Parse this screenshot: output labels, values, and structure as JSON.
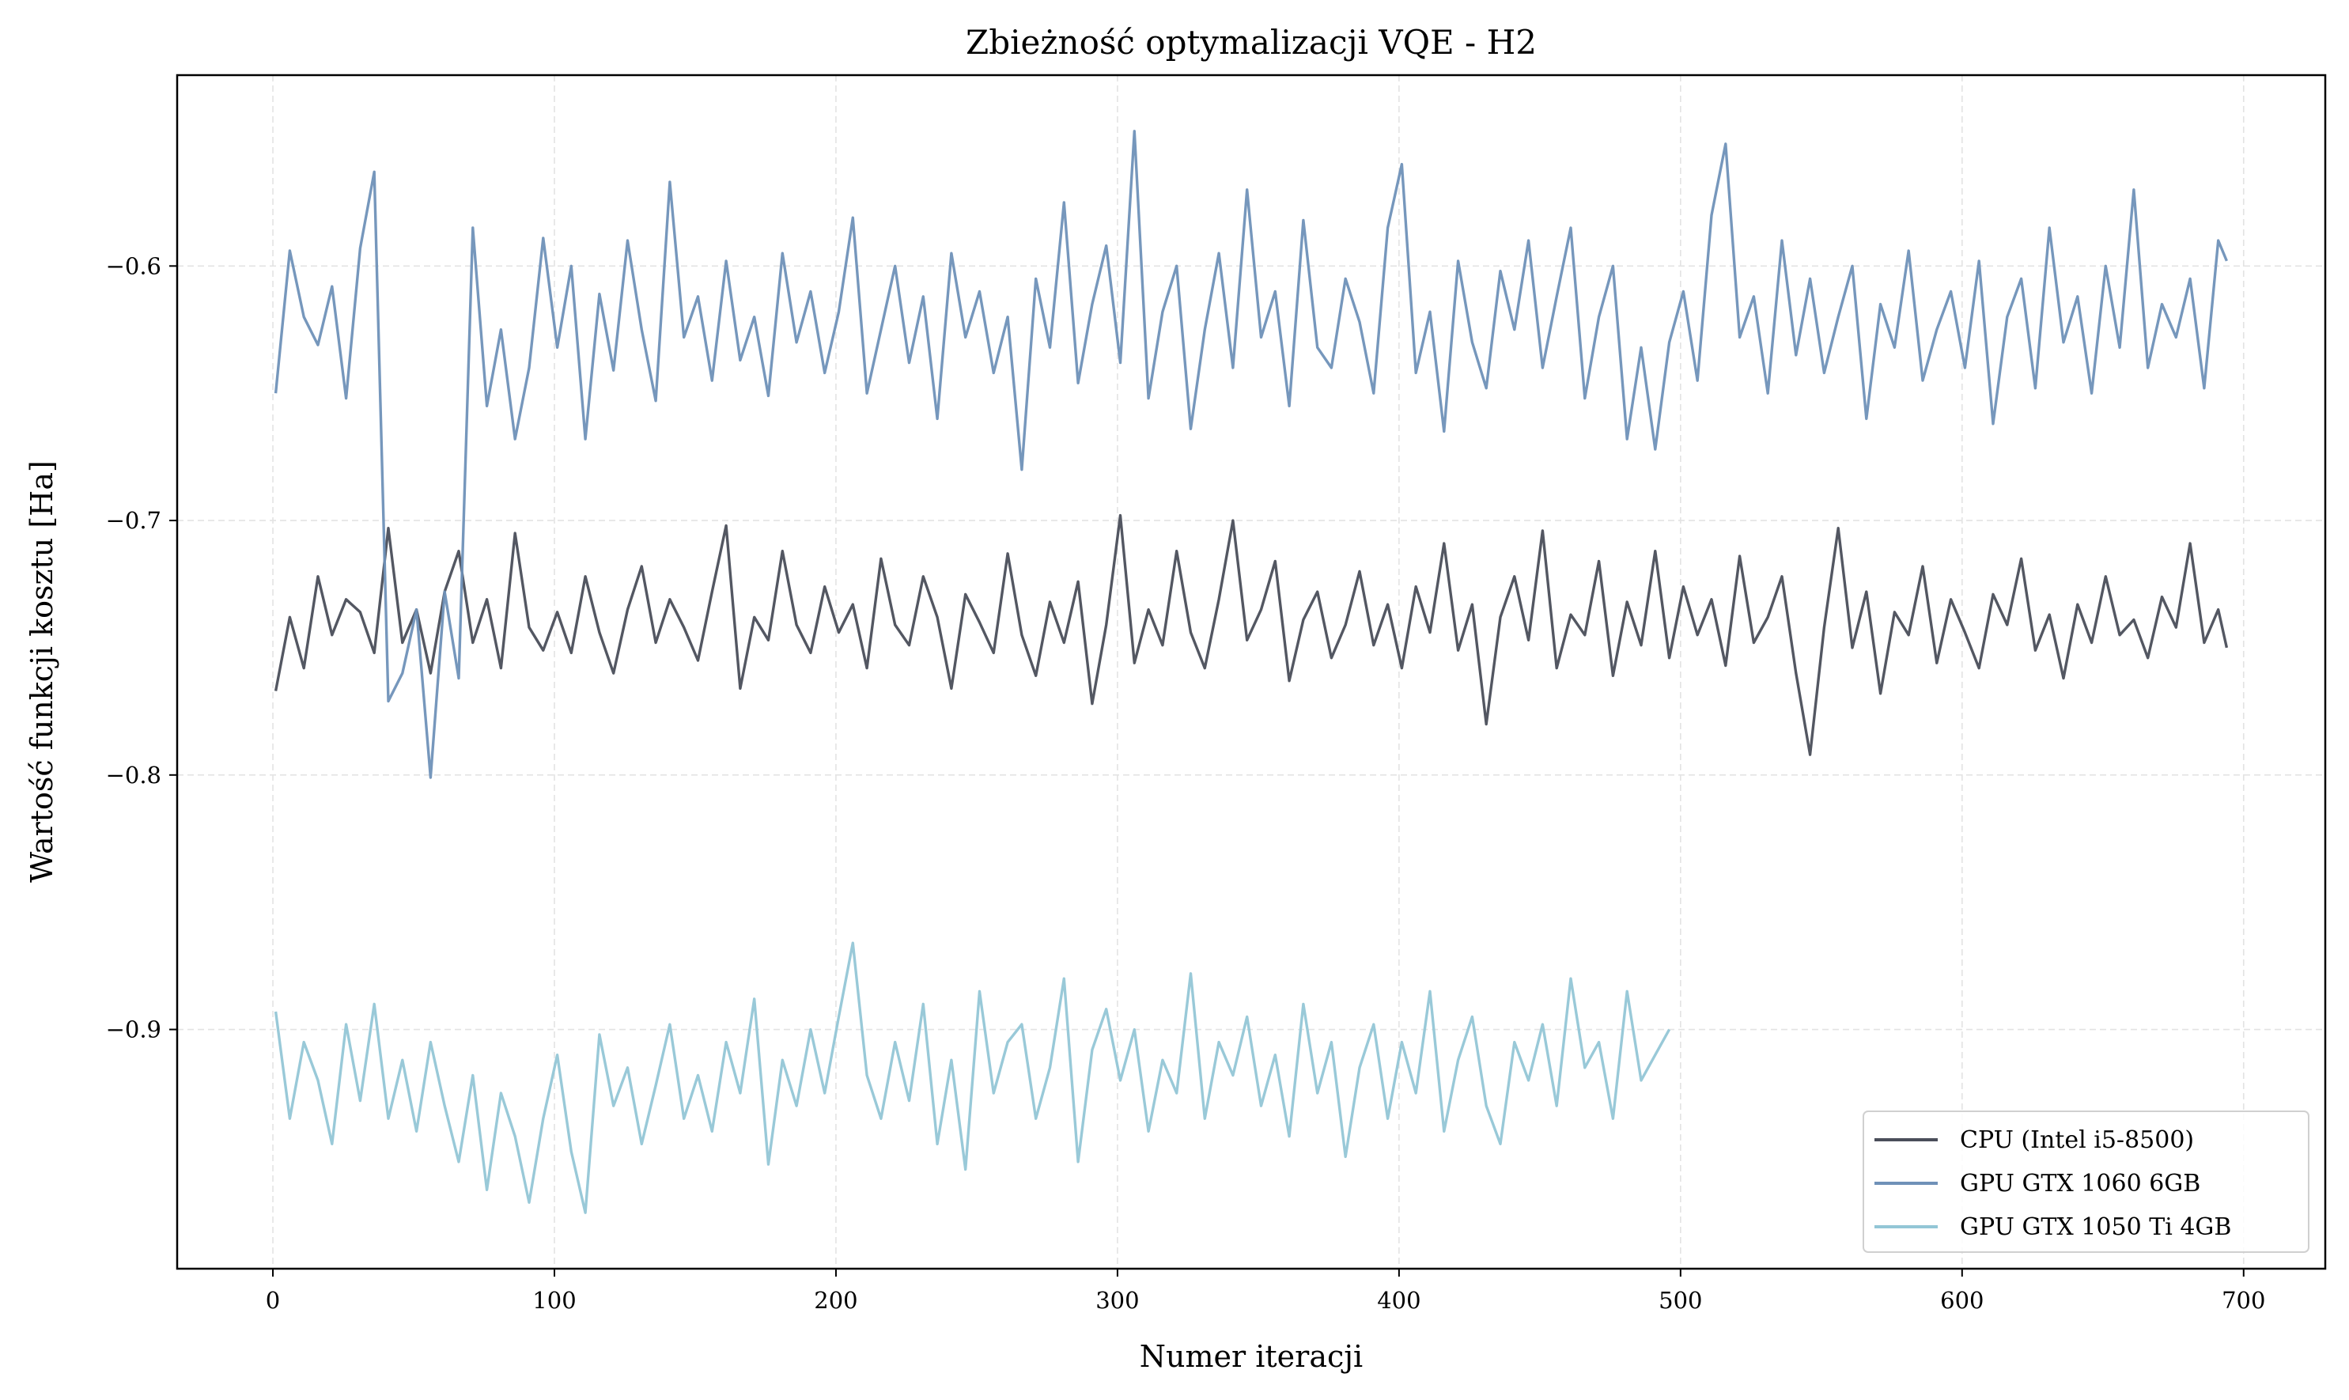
{
  "chart_data": {
    "type": "line",
    "title": "Zbieżność optymalizacji VQE - H2",
    "xlabel": "Numer iteracji",
    "ylabel": "Wartość funkcji kosztu [Ha]",
    "xlim": [
      -34,
      729
    ],
    "ylim": [
      -0.994,
      -0.525
    ],
    "xticks": [
      0,
      100,
      200,
      300,
      400,
      500,
      600,
      700
    ],
    "xtick_labels": [
      "0",
      "100",
      "200",
      "300",
      "400",
      "500",
      "600",
      "700"
    ],
    "yticks": [
      -0.6,
      -0.7,
      -0.8,
      -0.9
    ],
    "ytick_labels": [
      "−0.6",
      "−0.7",
      "−0.8",
      "−0.9"
    ],
    "grid": true,
    "legend_position": "bottom-right",
    "series": [
      {
        "name": "CPU (Intel i5-8500)",
        "color": "#4a4e5a",
        "x": [
          1,
          6,
          11,
          16,
          21,
          26,
          31,
          36,
          41,
          46,
          51,
          56,
          61,
          66,
          71,
          76,
          81,
          86,
          91,
          96,
          101,
          106,
          111,
          116,
          121,
          126,
          131,
          136,
          141,
          146,
          151,
          156,
          161,
          166,
          171,
          176,
          181,
          186,
          191,
          196,
          201,
          206,
          211,
          216,
          221,
          226,
          231,
          236,
          241,
          246,
          251,
          256,
          261,
          266,
          271,
          276,
          281,
          286,
          291,
          296,
          301,
          306,
          311,
          316,
          321,
          326,
          331,
          336,
          341,
          346,
          351,
          356,
          361,
          366,
          371,
          376,
          381,
          386,
          391,
          396,
          401,
          406,
          411,
          416,
          421,
          426,
          431,
          436,
          441,
          446,
          451,
          456,
          461,
          466,
          471,
          476,
          481,
          486,
          491,
          496,
          501,
          506,
          511,
          516,
          521,
          526,
          531,
          536,
          541,
          546,
          551,
          556,
          561,
          566,
          571,
          576,
          581,
          586,
          591,
          596,
          601,
          606,
          611,
          616,
          621,
          626,
          631,
          636,
          641,
          646,
          651,
          656,
          661,
          666,
          671,
          676,
          681,
          686,
          691,
          694
        ],
        "y": [
          -0.767,
          -0.738,
          -0.758,
          -0.722,
          -0.745,
          -0.731,
          -0.736,
          -0.752,
          -0.703,
          -0.748,
          -0.735,
          -0.76,
          -0.728,
          -0.712,
          -0.748,
          -0.731,
          -0.758,
          -0.705,
          -0.742,
          -0.751,
          -0.736,
          -0.752,
          -0.722,
          -0.744,
          -0.76,
          -0.735,
          -0.718,
          -0.748,
          -0.731,
          -0.742,
          -0.755,
          -0.728,
          -0.702,
          -0.766,
          -0.738,
          -0.747,
          -0.712,
          -0.741,
          -0.752,
          -0.726,
          -0.744,
          -0.733,
          -0.758,
          -0.715,
          -0.741,
          -0.749,
          -0.722,
          -0.738,
          -0.766,
          -0.729,
          -0.74,
          -0.752,
          -0.713,
          -0.745,
          -0.761,
          -0.732,
          -0.748,
          -0.724,
          -0.772,
          -0.741,
          -0.698,
          -0.756,
          -0.735,
          -0.749,
          -0.712,
          -0.744,
          -0.758,
          -0.731,
          -0.7,
          -0.747,
          -0.735,
          -0.716,
          -0.763,
          -0.739,
          -0.728,
          -0.754,
          -0.741,
          -0.72,
          -0.749,
          -0.733,
          -0.758,
          -0.726,
          -0.744,
          -0.709,
          -0.751,
          -0.733,
          -0.78,
          -0.738,
          -0.722,
          -0.747,
          -0.704,
          -0.758,
          -0.737,
          -0.745,
          -0.716,
          -0.761,
          -0.732,
          -0.749,
          -0.712,
          -0.754,
          -0.726,
          -0.745,
          -0.731,
          -0.757,
          -0.714,
          -0.748,
          -0.738,
          -0.722,
          -0.76,
          -0.792,
          -0.742,
          -0.703,
          -0.75,
          -0.728,
          -0.768,
          -0.736,
          -0.745,
          -0.718,
          -0.756,
          -0.731,
          -0.744,
          -0.758,
          -0.729,
          -0.741,
          -0.715,
          -0.751,
          -0.737,
          -0.762,
          -0.733,
          -0.748,
          -0.722,
          -0.745,
          -0.739,
          -0.754,
          -0.73,
          -0.742,
          -0.709,
          -0.748,
          -0.735,
          -0.75
        ]
      },
      {
        "name": "GPU GTX 1060 6GB",
        "color": "#6f91b8",
        "x": [
          1,
          6,
          11,
          16,
          21,
          26,
          31,
          36,
          41,
          46,
          51,
          56,
          61,
          66,
          71,
          76,
          81,
          86,
          91,
          96,
          101,
          106,
          111,
          116,
          121,
          126,
          131,
          136,
          141,
          146,
          151,
          156,
          161,
          166,
          171,
          176,
          181,
          186,
          191,
          196,
          201,
          206,
          211,
          216,
          221,
          226,
          231,
          236,
          241,
          246,
          251,
          256,
          261,
          266,
          271,
          276,
          281,
          286,
          291,
          296,
          301,
          306,
          311,
          316,
          321,
          326,
          331,
          336,
          341,
          346,
          351,
          356,
          361,
          366,
          371,
          376,
          381,
          386,
          391,
          396,
          401,
          406,
          411,
          416,
          421,
          426,
          431,
          436,
          441,
          446,
          451,
          456,
          461,
          466,
          471,
          476,
          481,
          486,
          491,
          496,
          501,
          506,
          511,
          516,
          521,
          526,
          531,
          536,
          541,
          546,
          551,
          556,
          561,
          566,
          571,
          576,
          581,
          586,
          591,
          596,
          601,
          606,
          611,
          616,
          621,
          626,
          631,
          636,
          641,
          646,
          651,
          656,
          661,
          666,
          671,
          676,
          681,
          686,
          691,
          694
        ],
        "y": [
          -0.65,
          -0.594,
          -0.62,
          -0.631,
          -0.608,
          -0.652,
          -0.593,
          -0.563,
          -0.771,
          -0.76,
          -0.735,
          -0.801,
          -0.728,
          -0.762,
          -0.585,
          -0.655,
          -0.625,
          -0.668,
          -0.64,
          -0.589,
          -0.632,
          -0.6,
          -0.668,
          -0.611,
          -0.641,
          -0.59,
          -0.625,
          -0.653,
          -0.567,
          -0.628,
          -0.612,
          -0.645,
          -0.598,
          -0.637,
          -0.62,
          -0.651,
          -0.595,
          -0.63,
          -0.61,
          -0.642,
          -0.618,
          -0.581,
          -0.65,
          -0.625,
          -0.6,
          -0.638,
          -0.612,
          -0.66,
          -0.595,
          -0.628,
          -0.61,
          -0.642,
          -0.62,
          -0.68,
          -0.605,
          -0.632,
          -0.575,
          -0.646,
          -0.615,
          -0.592,
          -0.638,
          -0.547,
          -0.652,
          -0.618,
          -0.6,
          -0.664,
          -0.625,
          -0.595,
          -0.64,
          -0.57,
          -0.628,
          -0.61,
          -0.655,
          -0.582,
          -0.632,
          -0.64,
          -0.605,
          -0.622,
          -0.65,
          -0.585,
          -0.56,
          -0.642,
          -0.618,
          -0.665,
          -0.598,
          -0.63,
          -0.648,
          -0.602,
          -0.625,
          -0.59,
          -0.64,
          -0.612,
          -0.585,
          -0.652,
          -0.62,
          -0.6,
          -0.668,
          -0.632,
          -0.672,
          -0.63,
          -0.61,
          -0.645,
          -0.58,
          -0.552,
          -0.628,
          -0.612,
          -0.65,
          -0.59,
          -0.635,
          -0.605,
          -0.642,
          -0.62,
          -0.6,
          -0.66,
          -0.615,
          -0.632,
          -0.594,
          -0.645,
          -0.625,
          -0.61,
          -0.64,
          -0.598,
          -0.662,
          -0.62,
          -0.605,
          -0.648,
          -0.585,
          -0.63,
          -0.612,
          -0.65,
          -0.6,
          -0.632,
          -0.57,
          -0.64,
          -0.615,
          -0.628,
          -0.605,
          -0.648,
          -0.59,
          -0.598
        ]
      },
      {
        "name": "GPU GTX 1050 Ti 4GB",
        "color": "#93c6d6",
        "x": [
          1,
          6,
          11,
          16,
          21,
          26,
          31,
          36,
          41,
          46,
          51,
          56,
          61,
          66,
          71,
          76,
          81,
          86,
          91,
          96,
          101,
          106,
          111,
          116,
          121,
          126,
          131,
          136,
          141,
          146,
          151,
          156,
          161,
          166,
          171,
          176,
          181,
          186,
          191,
          196,
          201,
          206,
          211,
          216,
          221,
          226,
          231,
          236,
          241,
          246,
          251,
          256,
          261,
          266,
          271,
          276,
          281,
          286,
          291,
          296,
          301,
          306,
          311,
          316,
          321,
          326,
          331,
          336,
          341,
          346,
          351,
          356,
          361,
          366,
          371,
          376,
          381,
          386,
          391,
          396,
          401,
          406,
          411,
          416,
          421,
          426,
          431,
          436,
          441,
          446,
          451,
          456,
          461,
          466,
          471,
          476,
          481,
          486,
          491,
          496
        ],
        "y": [
          -0.893,
          -0.935,
          -0.905,
          -0.92,
          -0.945,
          -0.898,
          -0.928,
          -0.89,
          -0.935,
          -0.912,
          -0.94,
          -0.905,
          -0.93,
          -0.952,
          -0.918,
          -0.963,
          -0.925,
          -0.942,
          -0.968,
          -0.935,
          -0.91,
          -0.948,
          -0.972,
          -0.902,
          -0.93,
          -0.915,
          -0.945,
          -0.922,
          -0.898,
          -0.935,
          -0.918,
          -0.94,
          -0.905,
          -0.925,
          -0.888,
          -0.953,
          -0.912,
          -0.93,
          -0.9,
          -0.925,
          -0.895,
          -0.866,
          -0.918,
          -0.935,
          -0.905,
          -0.928,
          -0.89,
          -0.945,
          -0.912,
          -0.955,
          -0.885,
          -0.925,
          -0.905,
          -0.898,
          -0.935,
          -0.915,
          -0.88,
          -0.952,
          -0.908,
          -0.892,
          -0.92,
          -0.9,
          -0.94,
          -0.912,
          -0.925,
          -0.878,
          -0.935,
          -0.905,
          -0.918,
          -0.895,
          -0.93,
          -0.91,
          -0.942,
          -0.89,
          -0.925,
          -0.905,
          -0.95,
          -0.915,
          -0.898,
          -0.935,
          -0.905,
          -0.925,
          -0.885,
          -0.94,
          -0.912,
          -0.895,
          -0.93,
          -0.945,
          -0.905,
          -0.92,
          -0.898,
          -0.93,
          -0.88,
          -0.915,
          -0.905,
          -0.935,
          -0.885,
          -0.92,
          -0.91,
          -0.9
        ]
      }
    ]
  }
}
